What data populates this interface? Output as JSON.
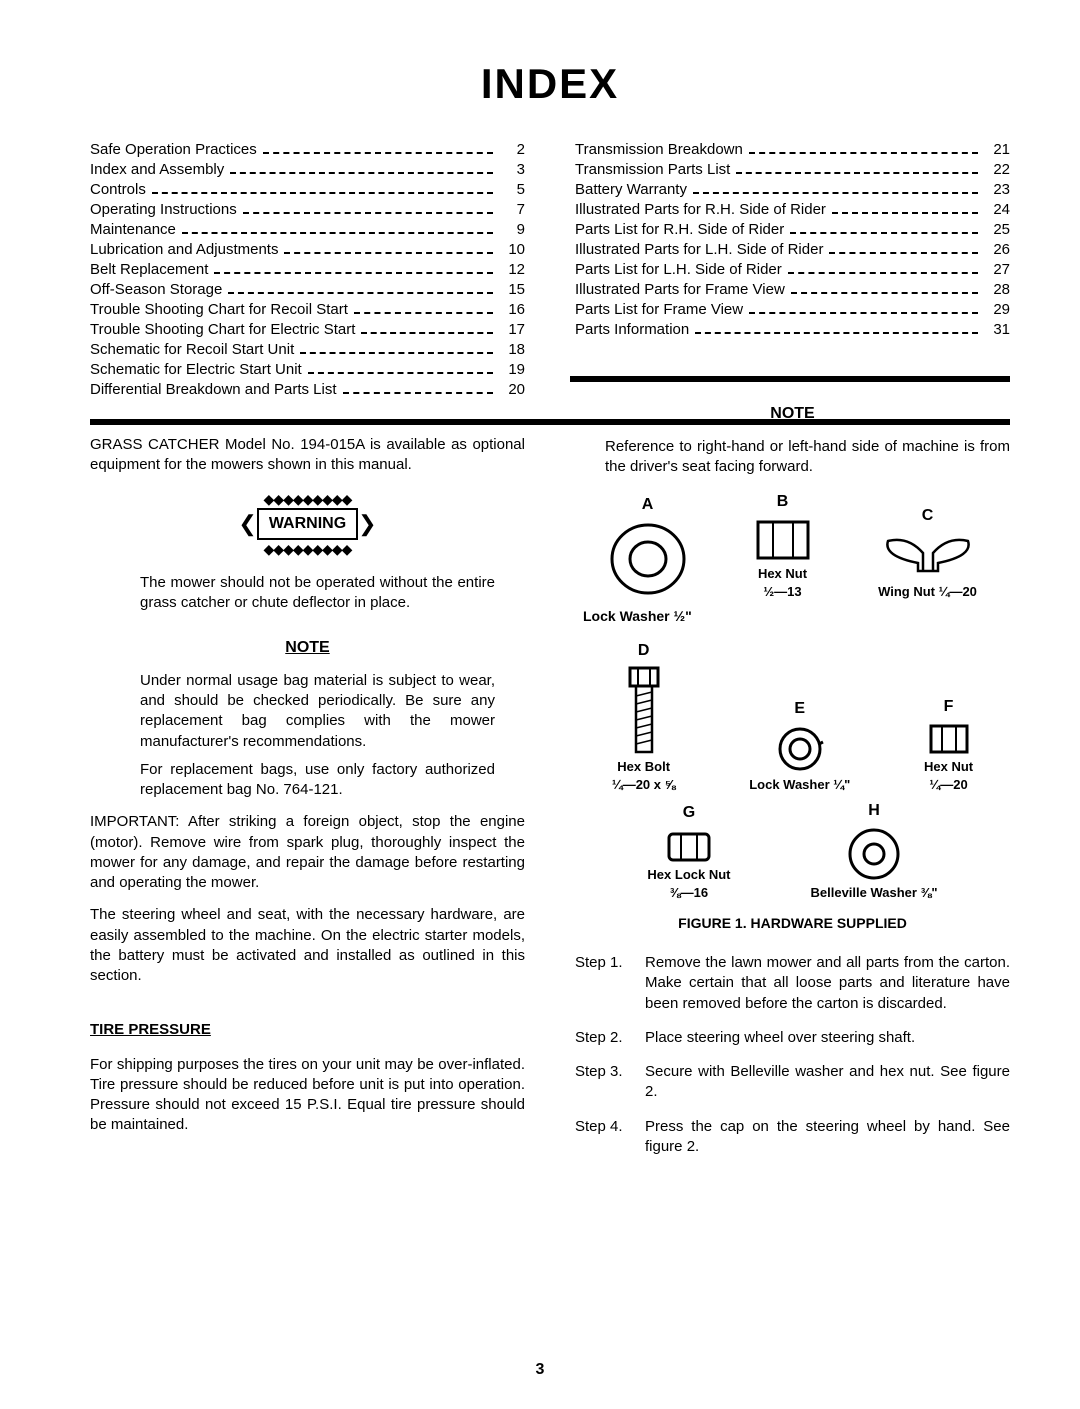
{
  "title": "INDEX",
  "index": {
    "left": [
      {
        "label": "Safe Operation Practices",
        "page": "2"
      },
      {
        "label": "Index and Assembly",
        "page": "3"
      },
      {
        "label": "Controls",
        "page": "5"
      },
      {
        "label": "Operating Instructions",
        "page": "7"
      },
      {
        "label": "Maintenance",
        "page": "9"
      },
      {
        "label": "Lubrication and Adjustments",
        "page": "10"
      },
      {
        "label": "Belt Replacement",
        "page": "12"
      },
      {
        "label": "Off-Season Storage",
        "page": "15"
      },
      {
        "label": "Trouble Shooting Chart for Recoil Start",
        "page": "16"
      },
      {
        "label": "Trouble Shooting Chart for Electric Start",
        "page": "17"
      },
      {
        "label": "Schematic for Recoil Start Unit",
        "page": "18"
      },
      {
        "label": "Schematic for Electric Start Unit",
        "page": "19"
      },
      {
        "label": "Differential Breakdown and Parts List",
        "page": "20"
      }
    ],
    "right": [
      {
        "label": "Transmission Breakdown",
        "page": "21"
      },
      {
        "label": "Transmission Parts List",
        "page": "22"
      },
      {
        "label": "Battery Warranty",
        "page": "23"
      },
      {
        "label": "Illustrated Parts for R.H. Side of Rider",
        "page": "24"
      },
      {
        "label": "Parts List for R.H. Side of Rider",
        "page": "25"
      },
      {
        "label": "Illustrated Parts for L.H. Side of Rider",
        "page": "26"
      },
      {
        "label": "Parts List for L.H. Side of Rider",
        "page": "27"
      },
      {
        "label": "Illustrated Parts for Frame View",
        "page": "28"
      },
      {
        "label": "Parts List for Frame View",
        "page": "29"
      },
      {
        "label": "Parts Information",
        "page": "31"
      }
    ]
  },
  "leftCol": {
    "grassCatcher": "GRASS CATCHER Model No. 194-015A is available as optional equipment for the mowers shown in this manual.",
    "warning": "WARNING",
    "warningText": "The mower should not be operated without the entire grass catcher or chute deflector in place.",
    "noteHeading": "NOTE",
    "noteText1": "Under normal usage bag material is subject to wear, and should be checked periodically. Be sure any replacement bag complies with the mower manufacturer's recommendations.",
    "noteText2": "For replacement bags, use only factory authorized replacement bag No. 764-121.",
    "important": "IMPORTANT: After striking a foreign object, stop the engine (motor). Remove wire from spark plug, thoroughly inspect the mower for any damage, and repair the damage before restarting and operating the mower.",
    "steeringPara": "The steering wheel and seat, with the necessary hardware, are easily assembled to the machine. On the electric starter models, the battery must be activated and installed as outlined in this section.",
    "tireHeading": "TIRE PRESSURE",
    "tirePara": "For shipping purposes the tires on your unit may be over-inflated. Tire pressure should be reduced before unit is put into operation. Pressure should not exceed 15 P.S.I. Equal tire pressure should be maintained."
  },
  "rightCol": {
    "noteHeading": "NOTE",
    "noteText": "Reference to right-hand or left-hand side of machine is from the driver's seat facing forward.",
    "hwLabels": {
      "A": {
        "letter": "A",
        "name": "Lock Washer ½\""
      },
      "B": {
        "letter": "B",
        "name": "Hex Nut",
        "size": "½—13"
      },
      "C": {
        "letter": "C",
        "name": "Wing Nut ¼—20"
      },
      "D": {
        "letter": "D",
        "name": "Hex Bolt",
        "size": "¼—20 x ⅝"
      },
      "E": {
        "letter": "E",
        "name": "Lock Washer ¼\""
      },
      "F": {
        "letter": "F",
        "name": "Hex Nut",
        "size": "¼—20"
      },
      "G": {
        "letter": "G",
        "name": "Hex Lock Nut",
        "size": "⅜—16"
      },
      "H": {
        "letter": "H",
        "name": "Belleville Washer ⅜\""
      }
    },
    "figCaption": "FIGURE 1. HARDWARE SUPPLIED",
    "steps": [
      {
        "num": "Step 1.",
        "text": "Remove the lawn mower and all parts from the carton. Make certain that all loose parts and literature have been removed before the carton is discarded."
      },
      {
        "num": "Step 2.",
        "text": "Place steering wheel over steering shaft."
      },
      {
        "num": "Step 3.",
        "text": "Secure with Belleville washer and hex nut. See figure 2."
      },
      {
        "num": "Step 4.",
        "text": "Press the cap on the steering wheel by hand. See figure 2."
      }
    ]
  },
  "pageNumber": "3"
}
